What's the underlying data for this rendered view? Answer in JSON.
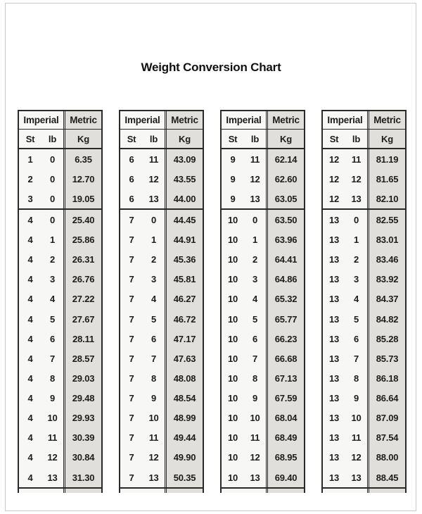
{
  "page": {
    "title": "Weight Conversion Chart"
  },
  "colors": {
    "imperial_bg": "#f7f7f5",
    "metric_bg": "#e0dfdc",
    "line_dark": "#2a2a2a",
    "frame_border": "#c9c9c9"
  },
  "headers": {
    "imperial": "Imperial",
    "metric": "Metric",
    "st": "St",
    "lb": "lb",
    "kg": "Kg"
  },
  "tables": [
    {
      "separator_before_index": 3,
      "rows": [
        [
          "1",
          "0",
          "6.35"
        ],
        [
          "2",
          "0",
          "12.70"
        ],
        [
          "3",
          "0",
          "19.05"
        ],
        [
          "4",
          "0",
          "25.40"
        ],
        [
          "4",
          "1",
          "25.86"
        ],
        [
          "4",
          "2",
          "26.31"
        ],
        [
          "4",
          "3",
          "26.76"
        ],
        [
          "4",
          "4",
          "27.22"
        ],
        [
          "4",
          "5",
          "27.67"
        ],
        [
          "4",
          "6",
          "28.11"
        ],
        [
          "4",
          "7",
          "28.57"
        ],
        [
          "4",
          "8",
          "29.03"
        ],
        [
          "4",
          "9",
          "29.48"
        ],
        [
          "4",
          "10",
          "29.93"
        ],
        [
          "4",
          "11",
          "30.39"
        ],
        [
          "4",
          "12",
          "30.84"
        ],
        [
          "4",
          "13",
          "31.30"
        ]
      ]
    },
    {
      "separator_before_index": 3,
      "rows": [
        [
          "6",
          "11",
          "43.09"
        ],
        [
          "6",
          "12",
          "43.55"
        ],
        [
          "6",
          "13",
          "44.00"
        ],
        [
          "7",
          "0",
          "44.45"
        ],
        [
          "7",
          "1",
          "44.91"
        ],
        [
          "7",
          "2",
          "45.36"
        ],
        [
          "7",
          "3",
          "45.81"
        ],
        [
          "7",
          "4",
          "46.27"
        ],
        [
          "7",
          "5",
          "46.72"
        ],
        [
          "7",
          "6",
          "47.17"
        ],
        [
          "7",
          "7",
          "47.63"
        ],
        [
          "7",
          "8",
          "48.08"
        ],
        [
          "7",
          "9",
          "48.54"
        ],
        [
          "7",
          "10",
          "48.99"
        ],
        [
          "7",
          "11",
          "49.44"
        ],
        [
          "7",
          "12",
          "49.90"
        ],
        [
          "7",
          "13",
          "50.35"
        ]
      ]
    },
    {
      "separator_before_index": 3,
      "rows": [
        [
          "9",
          "11",
          "62.14"
        ],
        [
          "9",
          "12",
          "62.60"
        ],
        [
          "9",
          "13",
          "63.05"
        ],
        [
          "10",
          "0",
          "63.50"
        ],
        [
          "10",
          "1",
          "63.96"
        ],
        [
          "10",
          "2",
          "64.41"
        ],
        [
          "10",
          "3",
          "64.86"
        ],
        [
          "10",
          "4",
          "65.32"
        ],
        [
          "10",
          "5",
          "65.77"
        ],
        [
          "10",
          "6",
          "66.23"
        ],
        [
          "10",
          "7",
          "66.68"
        ],
        [
          "10",
          "8",
          "67.13"
        ],
        [
          "10",
          "9",
          "67.59"
        ],
        [
          "10",
          "10",
          "68.04"
        ],
        [
          "10",
          "11",
          "68.49"
        ],
        [
          "10",
          "12",
          "68.95"
        ],
        [
          "10",
          "13",
          "69.40"
        ]
      ]
    },
    {
      "separator_before_index": 3,
      "rows": [
        [
          "12",
          "11",
          "81.19"
        ],
        [
          "12",
          "12",
          "81.65"
        ],
        [
          "12",
          "13",
          "82.10"
        ],
        [
          "13",
          "0",
          "82.55"
        ],
        [
          "13",
          "1",
          "83.01"
        ],
        [
          "13",
          "2",
          "83.46"
        ],
        [
          "13",
          "3",
          "83.92"
        ],
        [
          "13",
          "4",
          "84.37"
        ],
        [
          "13",
          "5",
          "84.82"
        ],
        [
          "13",
          "6",
          "85.28"
        ],
        [
          "13",
          "7",
          "85.73"
        ],
        [
          "13",
          "8",
          "86.18"
        ],
        [
          "13",
          "9",
          "86.64"
        ],
        [
          "13",
          "10",
          "87.09"
        ],
        [
          "13",
          "11",
          "87.54"
        ],
        [
          "13",
          "12",
          "88.00"
        ],
        [
          "13",
          "13",
          "88.45"
        ]
      ]
    }
  ]
}
